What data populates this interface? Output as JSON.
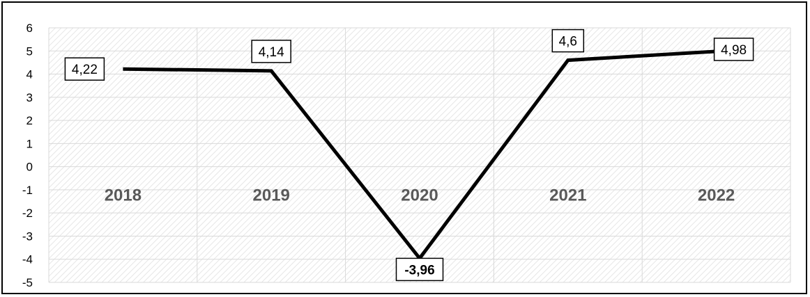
{
  "chart_data": {
    "type": "line",
    "categories": [
      "2018",
      "2019",
      "2020",
      "2021",
      "2022"
    ],
    "values": [
      4.22,
      4.14,
      -3.96,
      4.6,
      4.98
    ],
    "data_labels": [
      "4,22",
      "4,14",
      "-3,96",
      "4,6",
      "4,98"
    ],
    "y_ticks": [
      "6",
      "5",
      "4",
      "3",
      "2",
      "1",
      "0",
      "-1",
      "-2",
      "-3",
      "-4",
      "-5"
    ],
    "ylim": [
      -5,
      6
    ],
    "grid": true,
    "legend": "none",
    "line_color": "#000000",
    "category_label_color": "#595959",
    "plot_pattern": "diagonal-hatch"
  }
}
